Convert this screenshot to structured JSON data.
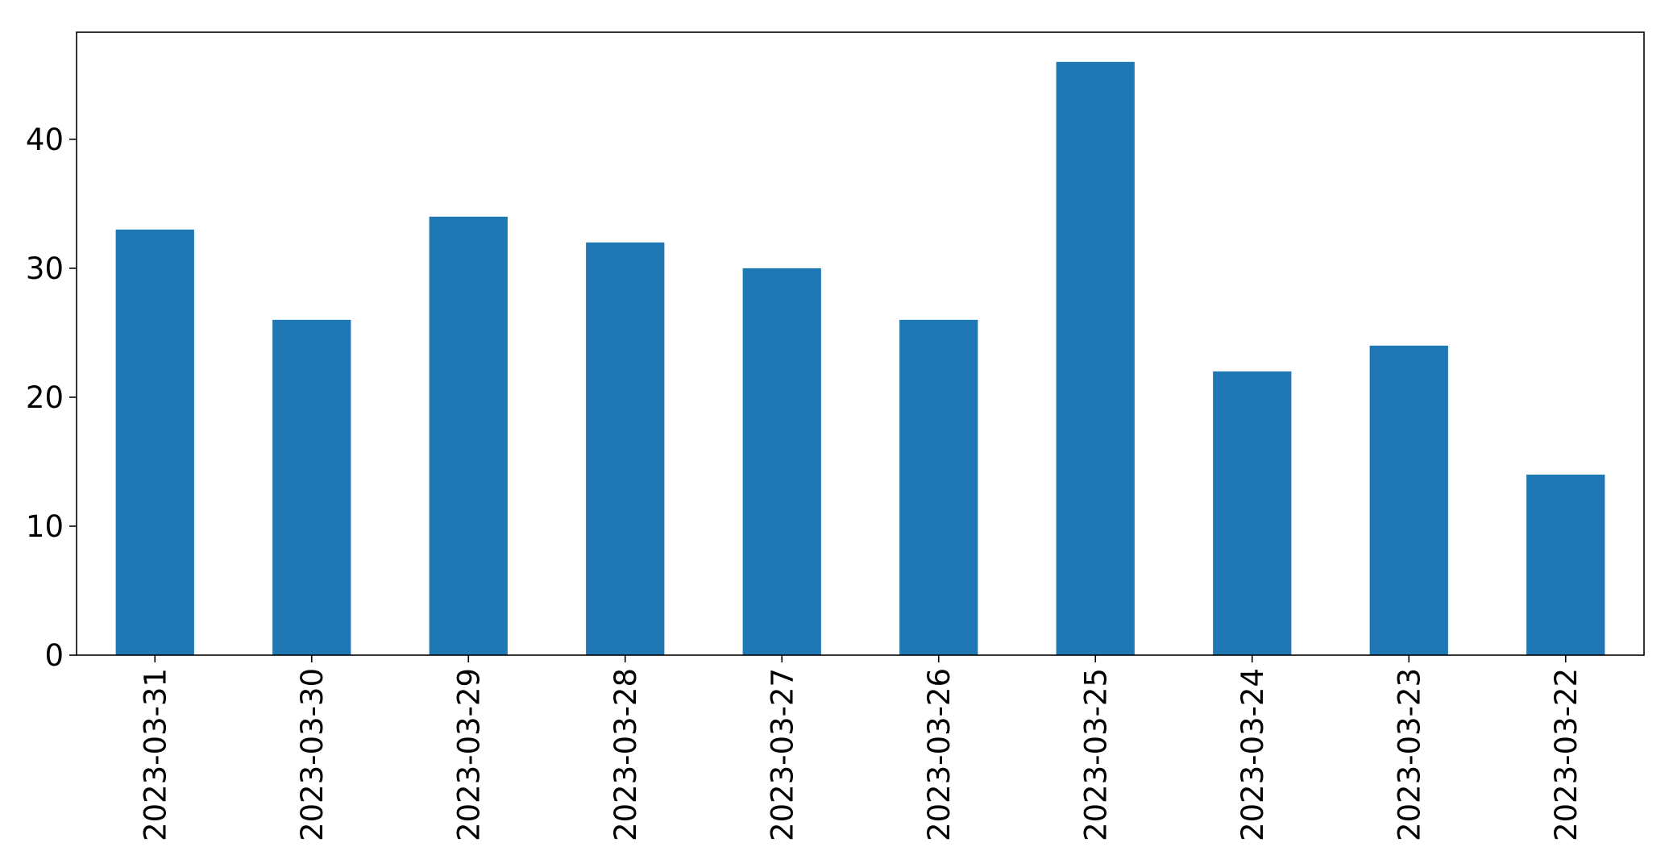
{
  "chart_data": {
    "type": "bar",
    "categories": [
      "2023-03-31",
      "2023-03-30",
      "2023-03-29",
      "2023-03-28",
      "2023-03-27",
      "2023-03-26",
      "2023-03-25",
      "2023-03-24",
      "2023-03-23",
      "2023-03-22"
    ],
    "values": [
      33,
      26,
      34,
      32,
      30,
      26,
      46,
      22,
      24,
      14
    ],
    "title": "",
    "xlabel": "",
    "ylabel": "",
    "ylim": [
      0,
      48.3
    ],
    "yticks": [
      0,
      10,
      20,
      30,
      40
    ],
    "grid": false,
    "legend": "none",
    "bar_color": "#1f77b4",
    "xtick_rotation": "vertical"
  }
}
